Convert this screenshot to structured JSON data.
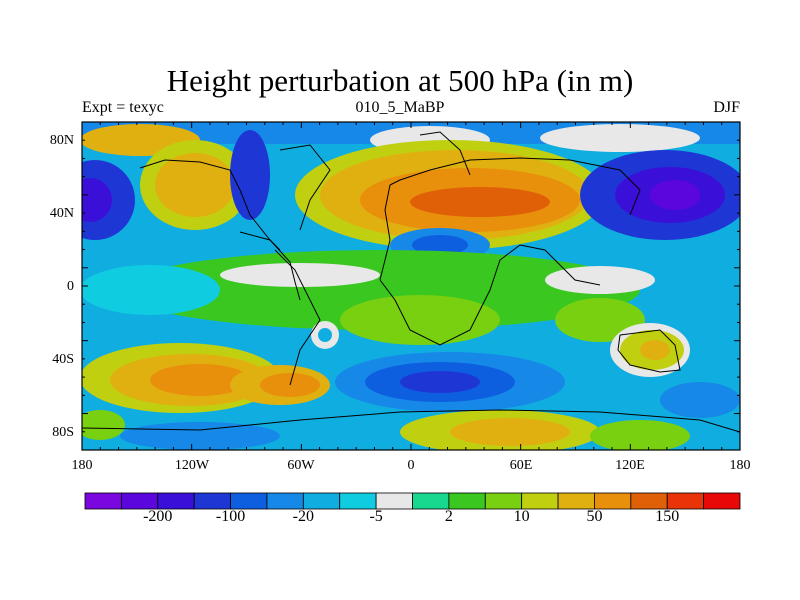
{
  "title": "Height perturbation at 500 hPa (in m)",
  "subtitle_left": "Expt = texyc",
  "subtitle_center": "010_5_MaBP",
  "subtitle_right": "DJF",
  "lat_ticks": [
    "80N",
    "40N",
    "0",
    "40S",
    "80S"
  ],
  "lon_ticks": [
    "180",
    "120W",
    "60W",
    "0",
    "60E",
    "120E",
    "180"
  ],
  "colorbar": {
    "colors": [
      "#7a06e0",
      "#5b06dc",
      "#3a10d8",
      "#1e36d4",
      "#0e5ee0",
      "#1688e8",
      "#10aee0",
      "#10cce0",
      "#e8e8e8",
      "#18d890",
      "#3ac820",
      "#78d010",
      "#c0d010",
      "#e0b010",
      "#e8900c",
      "#e06008",
      "#e83408",
      "#e80808"
    ],
    "labels": [
      {
        "text": "-200",
        "boundary": 2
      },
      {
        "text": "-100",
        "boundary": 4
      },
      {
        "text": "-20",
        "boundary": 6
      },
      {
        "text": "-5",
        "boundary": 8
      },
      {
        "text": "2",
        "boundary": 10
      },
      {
        "text": "10",
        "boundary": 12
      },
      {
        "text": "50",
        "boundary": 14
      },
      {
        "text": "150",
        "boundary": 16
      }
    ]
  }
}
